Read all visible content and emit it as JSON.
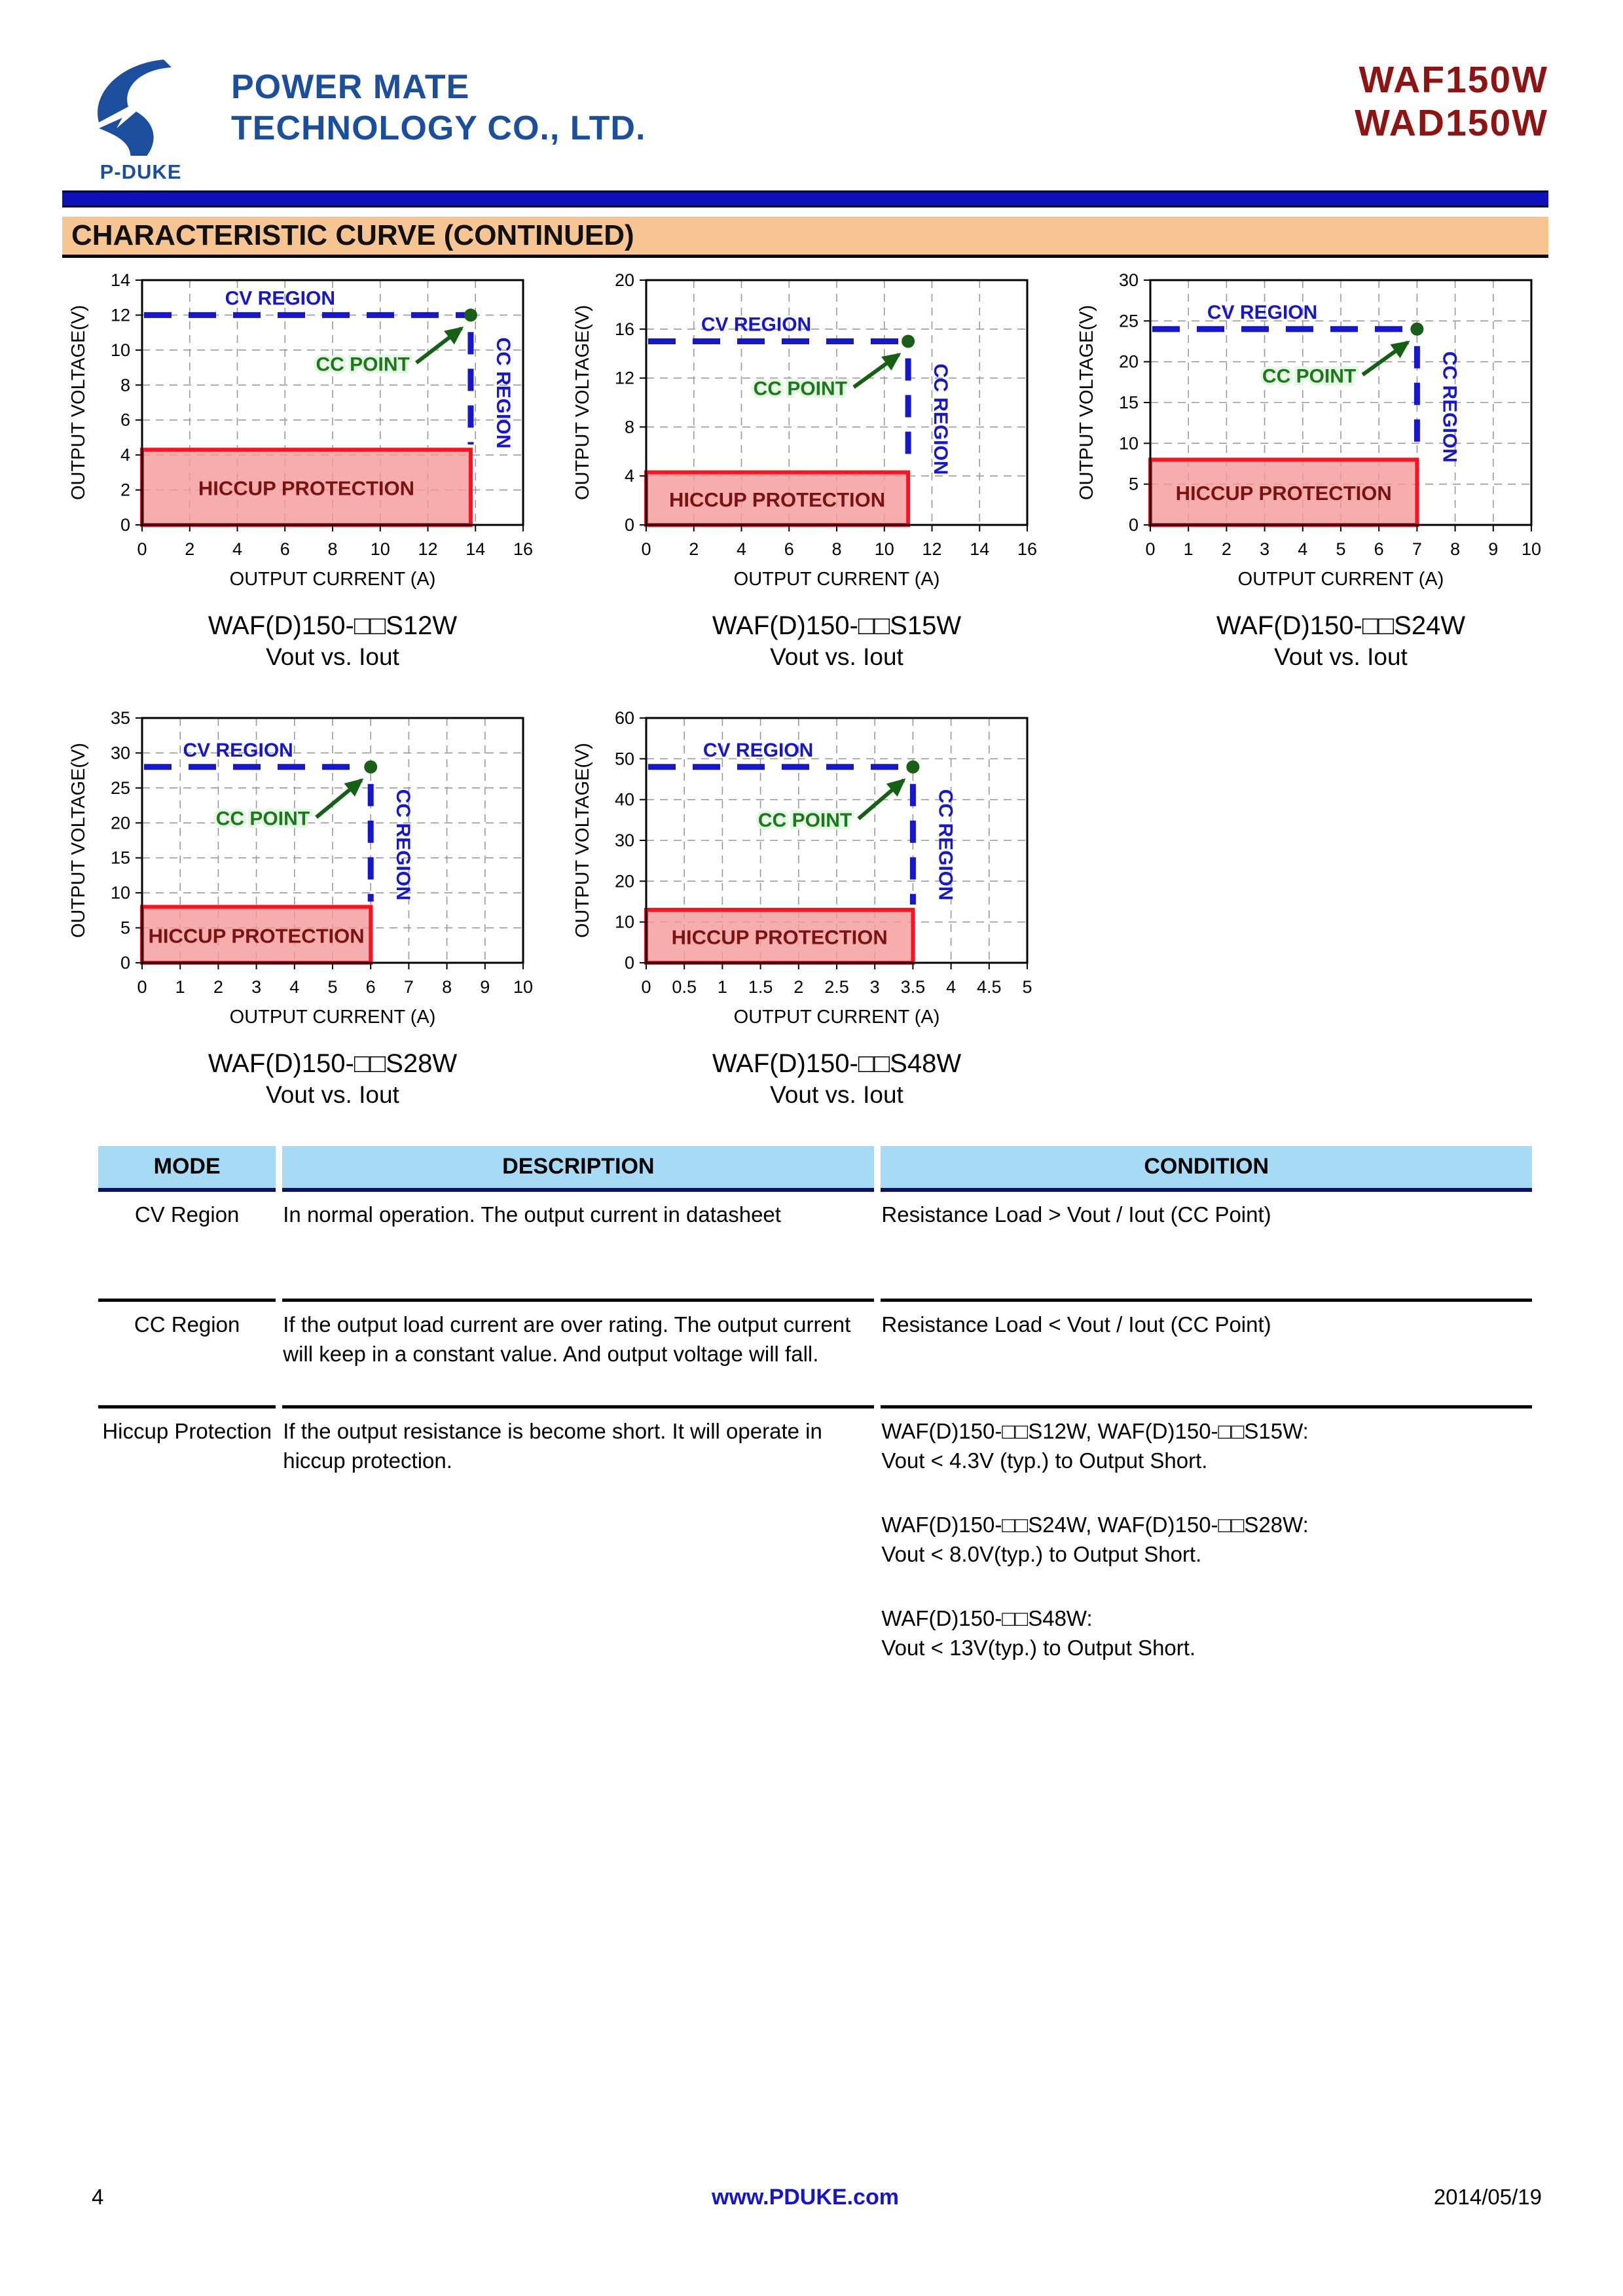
{
  "header": {
    "logo_text": "P-DUKE",
    "company_line1": "POWER MATE",
    "company_line2": "TECHNOLOGY CO., LTD.",
    "model_line1": "WAF150W",
    "model_line2": "WAD150W"
  },
  "section": {
    "title": "CHARACTERISTIC CURVE (CONTINUED)"
  },
  "colors": {
    "brand_blue": "#1B4F9E",
    "model_red": "#8E1414",
    "banner_peach": "#F6C592",
    "table_header_blue": "#A7DAF5",
    "cv_cc_blue": "#1616CC",
    "cc_point_green": "#1A7A1A",
    "arrow_green": "#146014",
    "dot_green": "#1A5E1A",
    "hiccup_fill": "#F49898",
    "hiccup_border": "#FF1122",
    "hiccup_text": "#7A1212",
    "grid_gray": "#999999"
  },
  "chart_data": [
    {
      "type": "line",
      "model": "WAF(D)150-□□S12W",
      "subtitle": "Vout vs. Iout",
      "xlabel": "OUTPUT CURRENT (A)",
      "ylabel": "OUTPUT VOLTAGE(V)",
      "xlim": [
        0,
        16
      ],
      "ylim": [
        0,
        14
      ],
      "xtick_step": 2,
      "ytick_step": 2,
      "cv_voltage": 12,
      "cc_current": 13.8,
      "hiccup_voltage": 4.3,
      "labels": {
        "cv": "CV REGION",
        "cc": "CC REGION",
        "cc_point": "CC POINT",
        "hiccup": "HICCUP PROTECTION"
      }
    },
    {
      "type": "line",
      "model": "WAF(D)150-□□S15W",
      "subtitle": "Vout vs. Iout",
      "xlabel": "OUTPUT CURRENT (A)",
      "ylabel": "OUTPUT VOLTAGE(V)",
      "xlim": [
        0,
        16
      ],
      "ylim": [
        0,
        20
      ],
      "xtick_step": 2,
      "ytick_step": 4,
      "cv_voltage": 15,
      "cc_current": 11,
      "hiccup_voltage": 4.3,
      "labels": {
        "cv": "CV REGION",
        "cc": "CC REGION",
        "cc_point": "CC POINT",
        "hiccup": "HICCUP PROTECTION"
      }
    },
    {
      "type": "line",
      "model": "WAF(D)150-□□S24W",
      "subtitle": "Vout vs. Iout",
      "xlabel": "OUTPUT CURRENT (A)",
      "ylabel": "OUTPUT VOLTAGE(V)",
      "xlim": [
        0,
        10
      ],
      "ylim": [
        0,
        30
      ],
      "xtick_step": 1,
      "ytick_step": 5,
      "cv_voltage": 24,
      "cc_current": 7,
      "hiccup_voltage": 8,
      "labels": {
        "cv": "CV REGION",
        "cc": "CC REGION",
        "cc_point": "CC POINT",
        "hiccup": "HICCUP PROTECTION"
      }
    },
    {
      "type": "line",
      "model": "WAF(D)150-□□S28W",
      "subtitle": "Vout vs. Iout",
      "xlabel": "OUTPUT CURRENT (A)",
      "ylabel": "OUTPUT VOLTAGE(V)",
      "xlim": [
        0,
        10
      ],
      "ylim": [
        0,
        35
      ],
      "xtick_step": 1,
      "ytick_step": 5,
      "cv_voltage": 28,
      "cc_current": 6,
      "hiccup_voltage": 8,
      "labels": {
        "cv": "CV REGION",
        "cc": "CC REGION",
        "cc_point": "CC POINT",
        "hiccup": "HICCUP PROTECTION"
      }
    },
    {
      "type": "line",
      "model": "WAF(D)150-□□S48W",
      "subtitle": "Vout vs. Iout",
      "xlabel": "OUTPUT CURRENT (A)",
      "ylabel": "OUTPUT VOLTAGE(V)",
      "xlim": [
        0,
        5
      ],
      "ylim": [
        0,
        60
      ],
      "xtick_step": 0.5,
      "ytick_step": 10,
      "cv_voltage": 48,
      "cc_current": 3.5,
      "hiccup_voltage": 13,
      "labels": {
        "cv": "CV REGION",
        "cc": "CC REGION",
        "cc_point": "CC POINT",
        "hiccup": "HICCUP PROTECTION"
      }
    }
  ],
  "table": {
    "headers": [
      "MODE",
      "DESCRIPTION",
      "CONDITION"
    ],
    "rows": [
      {
        "mode": "CV Region",
        "description": "In normal operation. The output current in datasheet",
        "condition": [
          [
            "Resistance Load > Vout / Iout (CC Point)"
          ]
        ]
      },
      {
        "mode": "CC Region",
        "description": "If the output load current are over rating. The output current will keep in a constant value. And output voltage will fall.",
        "condition": [
          [
            "Resistance Load < Vout / Iout (CC Point)"
          ]
        ]
      },
      {
        "mode": "Hiccup Protection",
        "description": "If the output resistance is become short. It will operate in hiccup protection.",
        "condition": [
          [
            "WAF(D)150-□□S12W, WAF(D)150-□□S15W:",
            "Vout < 4.3V (typ.) to Output Short."
          ],
          [
            "WAF(D)150-□□S24W, WAF(D)150-□□S28W:",
            "Vout < 8.0V(typ.) to Output Short."
          ],
          [
            "WAF(D)150-□□S48W:",
            "Vout < 13V(typ.) to Output Short."
          ]
        ]
      }
    ]
  },
  "footer": {
    "page_number": "4",
    "website": "www.PDUKE.com",
    "date": "2014/05/19"
  }
}
